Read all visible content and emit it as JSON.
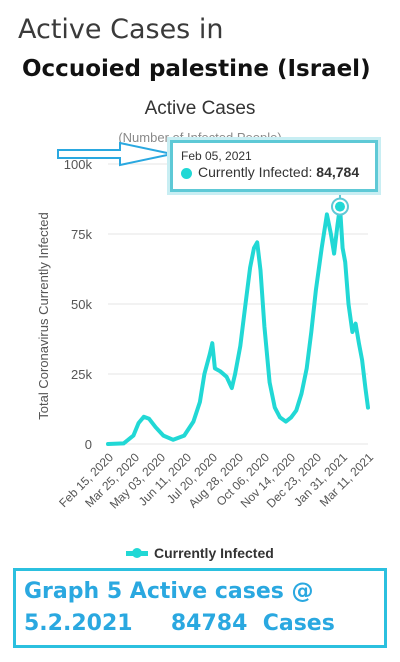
{
  "header": {
    "line1": "Active Cases in",
    "line2": "Occuoied palestine (Israel)"
  },
  "chart_data": {
    "type": "line",
    "title": "Active Cases",
    "subtitle": "(Number of Infected People)",
    "ylabel": "Total Coronavirus Currently Infected",
    "xlabel": "",
    "ylim": [
      0,
      100000
    ],
    "yticks": [
      0,
      25000,
      50000,
      75000,
      100000
    ],
    "ytick_labels": [
      "0",
      "25k",
      "50k",
      "75k",
      "100k"
    ],
    "xtick_labels": [
      "Feb 15, 2020",
      "Mar 25, 2020",
      "May 03, 2020",
      "Jun 11, 2020",
      "Jul 20, 2020",
      "Aug 28, 2020",
      "Oct 06, 2020",
      "Nov 14, 2020",
      "Dec 23, 2020",
      "Jan 31, 2021",
      "Mar 11, 2021"
    ],
    "grid": true,
    "legend_position": "bottom",
    "series": [
      {
        "name": "Currently Infected",
        "color": "#21d8d5",
        "points": [
          [
            "2020-02-15",
            0
          ],
          [
            "2020-03-10",
            200
          ],
          [
            "2020-03-25",
            3000
          ],
          [
            "2020-04-02",
            7500
          ],
          [
            "2020-04-10",
            9700
          ],
          [
            "2020-04-18",
            9000
          ],
          [
            "2020-04-28",
            6000
          ],
          [
            "2020-05-10",
            3000
          ],
          [
            "2020-05-25",
            1500
          ],
          [
            "2020-06-11",
            3000
          ],
          [
            "2020-06-25",
            8000
          ],
          [
            "2020-07-05",
            15000
          ],
          [
            "2020-07-12",
            25000
          ],
          [
            "2020-07-20",
            32000
          ],
          [
            "2020-07-24",
            36000
          ],
          [
            "2020-07-28",
            27000
          ],
          [
            "2020-08-05",
            26000
          ],
          [
            "2020-08-15",
            24000
          ],
          [
            "2020-08-23",
            20000
          ],
          [
            "2020-08-28",
            25000
          ],
          [
            "2020-09-05",
            35000
          ],
          [
            "2020-09-13",
            50000
          ],
          [
            "2020-09-20",
            63000
          ],
          [
            "2020-09-26",
            70000
          ],
          [
            "2020-10-01",
            72000
          ],
          [
            "2020-10-06",
            62000
          ],
          [
            "2020-10-12",
            42000
          ],
          [
            "2020-10-20",
            22000
          ],
          [
            "2020-10-28",
            13000
          ],
          [
            "2020-11-05",
            9500
          ],
          [
            "2020-11-14",
            8000
          ],
          [
            "2020-11-22",
            9500
          ],
          [
            "2020-11-30",
            12000
          ],
          [
            "2020-12-08",
            18000
          ],
          [
            "2020-12-16",
            27000
          ],
          [
            "2020-12-23",
            40000
          ],
          [
            "2020-12-30",
            55000
          ],
          [
            "2021-01-08",
            70000
          ],
          [
            "2021-01-16",
            82000
          ],
          [
            "2021-01-22",
            75000
          ],
          [
            "2021-01-27",
            68000
          ],
          [
            "2021-02-01",
            78000
          ],
          [
            "2021-02-05",
            84784
          ],
          [
            "2021-02-09",
            70000
          ],
          [
            "2021-02-13",
            65000
          ],
          [
            "2021-02-18",
            50000
          ],
          [
            "2021-02-24",
            40000
          ],
          [
            "2021-03-01",
            43000
          ],
          [
            "2021-03-06",
            36000
          ],
          [
            "2021-03-11",
            30000
          ],
          [
            "2021-03-16",
            20000
          ],
          [
            "2021-03-20",
            13000
          ]
        ]
      }
    ],
    "highlight": {
      "date_label": "Feb 05, 2021",
      "series_label": "Currently Infected:",
      "value_label": "84,784",
      "x": "2021-02-05",
      "y": 84784
    }
  },
  "caption": {
    "line1": "Graph 5 Active cases @",
    "line2": "5.2.2021     84784  Cases"
  }
}
